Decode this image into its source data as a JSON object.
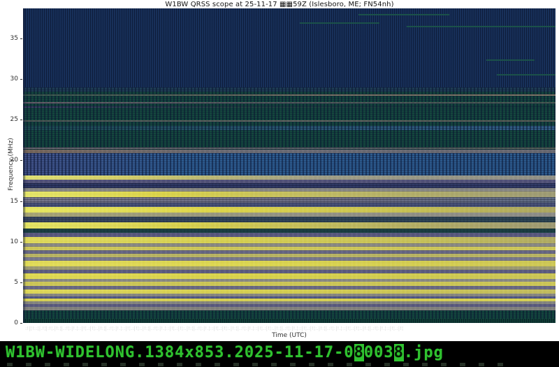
{
  "header": {
    "title": "W1BW QRSS scope at 25-11-17 ▦▦59Z (Islesboro, ME; FN54nh)"
  },
  "axes": {
    "ylabel": "Frequency (MHz)",
    "xlabel": "Time (UTC)",
    "yticks": [
      0,
      5,
      10,
      15,
      20,
      25,
      30,
      35
    ],
    "xticks_strip": ":!|¦!::¦|.!¦|:!¦.|!:¦|.:!¦:|!.¦::|!¦.:|!¦:.|!:¦|.:!¦:|!.¦::|!¦.:|!¦:.|!:¦|.:!¦:|!.¦::|!¦.:|!¦:.|!:¦|.:!¦:|!.¦::|!¦.:|!¦:.|!:¦|.:!¦:|!.¦::|!¦.:|!¦:.|!:¦|.:!¦:|!.¦::|!¦.:|!¦:.|!:¦|.:!¦:|!.¦::|!¦.:|!¦:.|!:¦|.:!¦:|!.¦::|!¦.:|!¦"
  },
  "footer": {
    "filename_prefix": "W1BW-WIDELONG.1384x853.2025-11-17-0",
    "filename_inv1": "8",
    "filename_mid": "003",
    "filename_inv2": "8",
    "filename_suffix": ".jpg",
    "text_color": "#2fc22f"
  },
  "chart_data": {
    "type": "heatmap",
    "subtype": "radio-spectrogram-waterfall",
    "title": "W1BW QRSS scope at 25-11-17 ▦▦59Z (Islesboro, ME; FN54nh)",
    "xlabel": "Time (UTC)",
    "ylabel": "Frequency (MHz)",
    "ylim": [
      0,
      38.7
    ],
    "yticks": [
      0,
      5,
      10,
      15,
      20,
      25,
      30,
      35
    ],
    "xticks_legible": false,
    "f_max": 38.7,
    "palette": {
      "quiet_navy": "#18315c",
      "noise_teal": "#15493f",
      "ionosphere_blue": "#2f5f95",
      "strong_signal_yellow": "#ece44e",
      "medium_gray": "#8f8f8a",
      "slate_purple": "#5c5c85"
    },
    "bands": [
      {
        "f_hi": 38.7,
        "f_lo": 28.98,
        "color": "#18315c",
        "tex": "dither"
      },
      {
        "f_hi": 28.98,
        "f_lo": 28.47,
        "color": "#1f3f56",
        "tex": "dots"
      },
      {
        "f_hi": 28.47,
        "f_lo": 28.12,
        "color": "#15493f",
        "tex": "dots"
      },
      {
        "f_hi": 28.12,
        "f_lo": 27.95,
        "color": "linear-gradient(90deg,#3a5a50,#7d7468 55%,#857a6a)",
        "tex": "noise"
      },
      {
        "f_hi": 27.95,
        "f_lo": 27.18,
        "color": "#15493f",
        "tex": "dots"
      },
      {
        "f_hi": 27.18,
        "f_lo": 27.0,
        "color": "linear-gradient(90deg,#6a5f6e,#555a60 50%,#4a5a55)",
        "tex": "noise"
      },
      {
        "f_hi": 27.0,
        "f_lo": 26.66,
        "color": "#15493f",
        "tex": "dots"
      },
      {
        "f_hi": 26.66,
        "f_lo": 26.49,
        "color": "linear-gradient(90deg,#4a4470,#2a4f48 40%,#15493f)",
        "tex": "dots"
      },
      {
        "f_hi": 26.49,
        "f_lo": 24.94,
        "color": "#15493f",
        "tex": "dots"
      },
      {
        "f_hi": 24.94,
        "f_lo": 24.77,
        "color": "linear-gradient(90deg,#4f5a57,#6a6a66 50%,#5d6058)",
        "tex": "noise"
      },
      {
        "f_hi": 24.77,
        "f_lo": 24.25,
        "color": "#15493f",
        "tex": "dots"
      },
      {
        "f_hi": 24.25,
        "f_lo": 23.73,
        "color": "linear-gradient(90deg,#1d4f51,#2a5a74 50%,#34618a)",
        "tex": "dots"
      },
      {
        "f_hi": 23.73,
        "f_lo": 21.59,
        "color": "#15493f",
        "tex": "dots"
      },
      {
        "f_hi": 21.59,
        "f_lo": 21.41,
        "color": "linear-gradient(90deg,#6d6670,#5d6068 60%,#566058)",
        "tex": "noise"
      },
      {
        "f_hi": 21.41,
        "f_lo": 21.33,
        "color": "#15493f",
        "tex": "dots"
      },
      {
        "f_hi": 21.33,
        "f_lo": 20.9,
        "color": "linear-gradient(90deg,#7a6a5e,#70707a 40%,#6d6d76)",
        "tex": "noise"
      },
      {
        "f_hi": 20.9,
        "f_lo": 18.15,
        "color": "linear-gradient(90deg,#44548c,#2f5f95 30%,#2d5c90)",
        "tex": "dots"
      },
      {
        "f_hi": 18.15,
        "f_lo": 17.63,
        "color": "linear-gradient(90deg,#eff07a,#e3dd6e 18%,#aaa88e 55%,#9a998f)",
        "tex": "noise"
      },
      {
        "f_hi": 17.63,
        "f_lo": 17.2,
        "color": "#565680",
        "tex": "noise"
      },
      {
        "f_hi": 17.2,
        "f_lo": 16.6,
        "color": "linear-gradient(90deg,#2e3866,#323c6a)",
        "tex": "hstripe"
      },
      {
        "f_hi": 16.6,
        "f_lo": 16.17,
        "color": "#8f8f8a",
        "tex": "noise"
      },
      {
        "f_hi": 16.17,
        "f_lo": 15.48,
        "color": "linear-gradient(90deg,#f6f670,#ece44e 25%,#cfc968 55%,#a8a57c)",
        "tex": "noise"
      },
      {
        "f_hi": 15.48,
        "f_lo": 14.79,
        "color": "linear-gradient(90deg,#7a7a90,#6f7088 60%,#63708a)",
        "tex": "hstripe"
      },
      {
        "f_hi": 14.79,
        "f_lo": 14.28,
        "color": "#4d5781",
        "tex": "hstripe"
      },
      {
        "f_hi": 14.28,
        "f_lo": 13.59,
        "color": "linear-gradient(90deg,#f8f868,#eee54e 35%,#d8d157 70%,#b7b168)",
        "tex": "noise"
      },
      {
        "f_hi": 13.59,
        "f_lo": 13.07,
        "color": "linear-gradient(90deg,#b3b07a,#9d9c8c 50%,#969690)",
        "tex": "noise"
      },
      {
        "f_hi": 13.07,
        "f_lo": 12.38,
        "color": "linear-gradient(90deg,#3c4a66,#33495e 50%,#2f4a58)",
        "tex": "hstripe"
      },
      {
        "f_hi": 12.38,
        "f_lo": 11.61,
        "color": "linear-gradient(90deg,#f4f46a,#e8e052 30%,#c8c266 65%,#a8a47a)",
        "tex": "noise"
      },
      {
        "f_hi": 11.61,
        "f_lo": 11.09,
        "color": "#1d4648",
        "tex": "hstripe"
      },
      {
        "f_hi": 11.09,
        "f_lo": 10.58,
        "color": "#5c5c85",
        "tex": "noise"
      },
      {
        "f_hi": 10.58,
        "f_lo": 9.8,
        "color": "linear-gradient(90deg,#f0ea60,#e6df55 40%,#d5cf5e 75%,#bdb768)",
        "tex": "noise"
      },
      {
        "f_hi": 9.8,
        "f_lo": 9.37,
        "color": "#90908a",
        "tex": "noise"
      },
      {
        "f_hi": 9.37,
        "f_lo": 8.94,
        "color": "#dcd65e",
        "tex": "noise"
      },
      {
        "f_hi": 8.94,
        "f_lo": 8.51,
        "color": "#6b6b89",
        "tex": "noise"
      },
      {
        "f_hi": 8.51,
        "f_lo": 8.08,
        "color": "#c6c168",
        "tex": "noise"
      },
      {
        "f_hi": 8.08,
        "f_lo": 7.65,
        "color": "#7e7e93",
        "tex": "noise"
      },
      {
        "f_hi": 7.65,
        "f_lo": 6.97,
        "color": "linear-gradient(90deg,#f2ec5e,#ebe454 50%,#ddd65a)",
        "tex": "noise"
      },
      {
        "f_hi": 6.97,
        "f_lo": 6.54,
        "color": "#a6a378",
        "tex": "noise"
      },
      {
        "f_hi": 6.54,
        "f_lo": 6.11,
        "color": "#606087",
        "tex": "noise"
      },
      {
        "f_hi": 6.11,
        "f_lo": 5.42,
        "color": "linear-gradient(90deg,#f0e958,#e9e250 45%,#d9d35b)",
        "tex": "noise"
      },
      {
        "f_hi": 5.42,
        "f_lo": 5.07,
        "color": "#92928c",
        "tex": "noise"
      },
      {
        "f_hi": 5.07,
        "f_lo": 4.56,
        "color": "#dbd55c",
        "tex": "noise"
      },
      {
        "f_hi": 4.56,
        "f_lo": 4.13,
        "color": "#6e6e8b",
        "tex": "noise"
      },
      {
        "f_hi": 4.13,
        "f_lo": 3.61,
        "color": "linear-gradient(90deg,#eee75e,#e4dd55 50%,#cfc964)",
        "tex": "noise"
      },
      {
        "f_hi": 3.61,
        "f_lo": 3.27,
        "color": "#8e8e88",
        "tex": "noise"
      },
      {
        "f_hi": 3.27,
        "f_lo": 3.01,
        "color": "#51598b",
        "tex": "noise"
      },
      {
        "f_hi": 3.01,
        "f_lo": 2.67,
        "color": "#e6df58",
        "tex": "noise"
      },
      {
        "f_hi": 2.67,
        "f_lo": 2.32,
        "color": "#8b8b86",
        "tex": "noise"
      },
      {
        "f_hi": 2.32,
        "f_lo": 1.98,
        "color": "#5d5d86",
        "tex": "noise"
      },
      {
        "f_hi": 1.98,
        "f_lo": 1.55,
        "color": "#898984",
        "tex": "noise"
      },
      {
        "f_hi": 1.55,
        "f_lo": 0.55,
        "color": "#14493f",
        "tex": "dots"
      },
      {
        "f_hi": 0.55,
        "f_lo": 0.0,
        "color": "#0f3d35",
        "tex": "dither"
      }
    ],
    "streaks": [
      {
        "f": 38.05,
        "x_pct": 63,
        "w_pct": 17
      },
      {
        "f": 36.95,
        "x_pct": 52,
        "w_pct": 15
      },
      {
        "f": 36.55,
        "x_pct": 72,
        "w_pct": 28
      },
      {
        "f": 32.4,
        "x_pct": 87,
        "w_pct": 9
      },
      {
        "f": 30.6,
        "x_pct": 89,
        "w_pct": 11
      }
    ]
  }
}
